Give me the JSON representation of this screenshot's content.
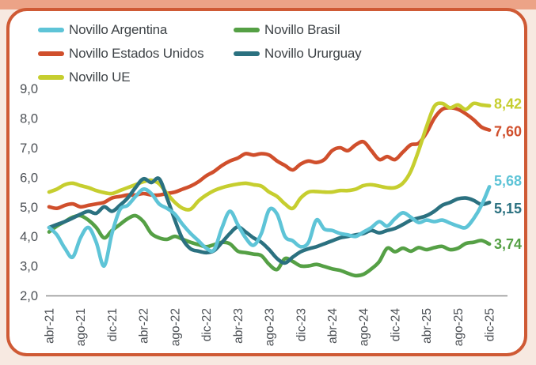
{
  "page": {
    "background": "#f7e9e1",
    "top_band_color": "#eca387"
  },
  "card": {
    "background": "#ffffff",
    "border_color": "#cf5a35"
  },
  "legend": {
    "items": [
      {
        "label": "Novillo Argentina",
        "color": "#5ec4d7"
      },
      {
        "label": "Novillo Brasil",
        "color": "#55a045"
      },
      {
        "label": "Novillo Estados Unidos",
        "color": "#d04f2c"
      },
      {
        "label": "Novillo Ururguay",
        "color": "#2b7180"
      },
      {
        "label": "Novillo UE",
        "color": "#c6ce2f"
      }
    ]
  },
  "chart_data": {
    "type": "line",
    "title": "",
    "xlabel": "",
    "ylabel": "",
    "grid": false,
    "legend_position": "top-left",
    "ylim": [
      2.0,
      9.0
    ],
    "y_tick_labels": [
      "9,0",
      "8,0",
      "7,0",
      "6,0",
      "5,0",
      "4,0",
      "3,0",
      "2,0"
    ],
    "y_tick_values": [
      9,
      8,
      7,
      6,
      5,
      4,
      3,
      2
    ],
    "x_tick_labels": [
      "abr-21",
      "ago-21",
      "dic-21",
      "abr-22",
      "ago-22",
      "dic-22",
      "abr-23",
      "ago-23",
      "dic-23",
      "abr-24",
      "ago-24",
      "dic-24",
      "abr-25",
      "ago-25",
      "dic-25"
    ],
    "x_tick_indices": [
      0,
      4,
      8,
      12,
      16,
      20,
      24,
      28,
      32,
      36,
      40,
      44,
      48,
      52,
      56
    ],
    "x_months_total": 57,
    "series": [
      {
        "name": "Novillo Brasil",
        "color": "#55a045",
        "end_label": "3,74",
        "end_value": 3.74,
        "values": [
          4.15,
          4.35,
          4.5,
          4.65,
          4.7,
          4.55,
          4.3,
          3.95,
          4.2,
          4.4,
          4.6,
          4.7,
          4.5,
          4.1,
          3.95,
          3.9,
          4.0,
          3.9,
          3.8,
          3.72,
          3.65,
          3.72,
          3.8,
          3.75,
          3.5,
          3.45,
          3.4,
          3.35,
          3.05,
          2.88,
          3.25,
          3.15,
          3.0,
          3.0,
          3.05,
          2.98,
          2.9,
          2.85,
          2.75,
          2.67,
          2.72,
          2.9,
          3.15,
          3.6,
          3.48,
          3.6,
          3.5,
          3.62,
          3.55,
          3.62,
          3.66,
          3.55,
          3.6,
          3.76,
          3.8,
          3.86,
          3.74
        ]
      },
      {
        "name": "Novillo Estados Unidos",
        "color": "#d04f2c",
        "end_label": "7,60",
        "end_value": 7.6,
        "values": [
          5.0,
          4.95,
          5.05,
          5.1,
          5.0,
          5.05,
          5.1,
          5.15,
          5.3,
          5.35,
          5.4,
          5.4,
          5.45,
          5.4,
          5.4,
          5.45,
          5.5,
          5.6,
          5.7,
          5.85,
          6.05,
          6.2,
          6.4,
          6.55,
          6.65,
          6.8,
          6.75,
          6.8,
          6.75,
          6.55,
          6.4,
          6.25,
          6.45,
          6.55,
          6.5,
          6.6,
          6.9,
          7.0,
          6.9,
          7.1,
          7.2,
          6.9,
          6.6,
          6.7,
          6.6,
          6.85,
          7.1,
          7.15,
          7.5,
          8.0,
          8.3,
          8.35,
          8.3,
          8.15,
          7.95,
          7.7,
          7.6
        ]
      },
      {
        "name": "Novillo UE",
        "color": "#c6ce2f",
        "end_label": "8,42",
        "end_value": 8.42,
        "values": [
          5.5,
          5.6,
          5.75,
          5.8,
          5.72,
          5.65,
          5.55,
          5.48,
          5.45,
          5.55,
          5.65,
          5.75,
          5.85,
          5.9,
          5.78,
          5.45,
          5.15,
          4.95,
          4.92,
          5.2,
          5.4,
          5.55,
          5.65,
          5.72,
          5.77,
          5.8,
          5.75,
          5.7,
          5.5,
          5.35,
          5.1,
          4.95,
          5.3,
          5.5,
          5.52,
          5.5,
          5.5,
          5.55,
          5.55,
          5.6,
          5.72,
          5.75,
          5.7,
          5.65,
          5.65,
          5.8,
          6.2,
          6.9,
          7.7,
          8.4,
          8.5,
          8.35,
          8.45,
          8.3,
          8.5,
          8.45,
          8.42
        ]
      },
      {
        "name": "Novillo Ururguay",
        "color": "#2b7180",
        "end_label": "5,15",
        "end_value": 5.15,
        "values": [
          4.3,
          4.4,
          4.5,
          4.62,
          4.75,
          4.85,
          4.78,
          5.0,
          4.85,
          5.05,
          5.3,
          5.65,
          5.95,
          5.82,
          5.95,
          5.3,
          4.55,
          3.9,
          3.58,
          3.5,
          3.45,
          3.52,
          3.8,
          4.1,
          4.32,
          4.15,
          3.95,
          3.8,
          3.55,
          3.25,
          3.1,
          3.3,
          3.48,
          3.58,
          3.65,
          3.75,
          3.85,
          3.95,
          4.0,
          4.05,
          4.1,
          4.2,
          4.12,
          4.2,
          4.27,
          4.4,
          4.55,
          4.62,
          4.7,
          4.85,
          5.05,
          5.15,
          5.27,
          5.3,
          5.22,
          5.08,
          5.15
        ]
      },
      {
        "name": "Novillo Argentina",
        "color": "#5ec4d7",
        "end_label": "5,68",
        "end_value": 5.68,
        "values": [
          4.3,
          4.05,
          3.6,
          3.3,
          3.95,
          4.3,
          3.8,
          3.0,
          4.1,
          4.9,
          5.05,
          5.35,
          5.6,
          5.45,
          5.1,
          4.95,
          4.75,
          4.4,
          4.1,
          3.85,
          3.6,
          3.55,
          4.3,
          4.85,
          4.4,
          3.95,
          3.7,
          4.1,
          4.9,
          4.75,
          4.0,
          3.85,
          3.65,
          3.8,
          4.55,
          4.25,
          4.2,
          4.1,
          4.05,
          4.0,
          4.15,
          4.3,
          4.5,
          4.35,
          4.6,
          4.8,
          4.65,
          4.47,
          4.55,
          4.5,
          4.55,
          4.45,
          4.35,
          4.3,
          4.6,
          5.05,
          5.68
        ]
      }
    ]
  }
}
